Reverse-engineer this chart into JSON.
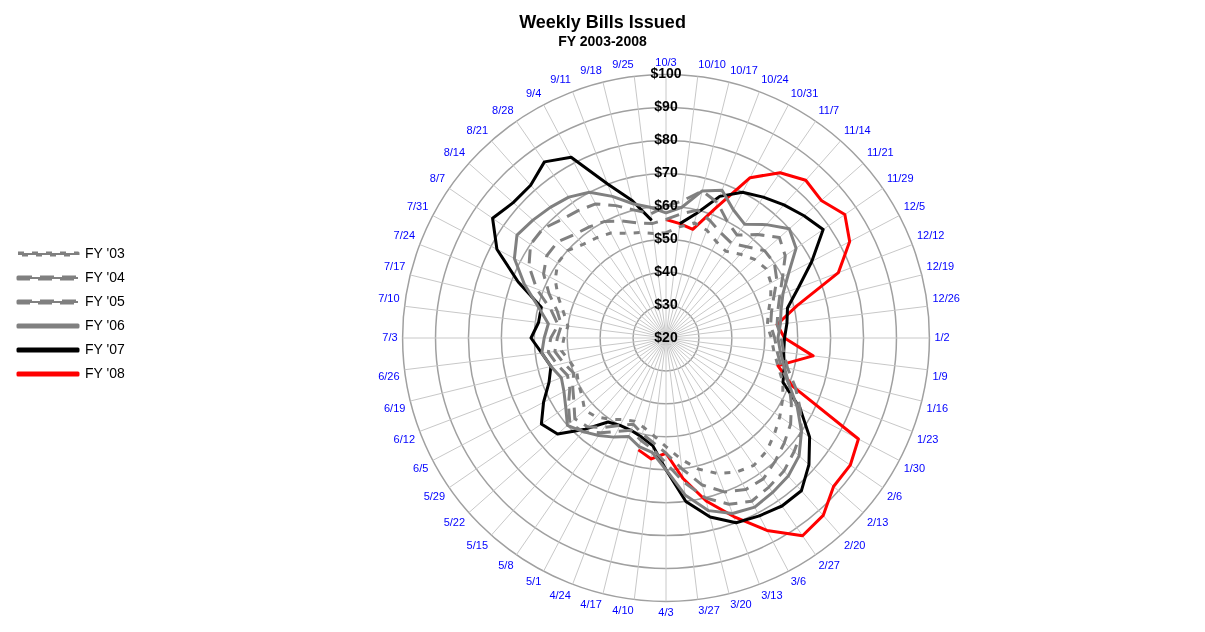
{
  "chart_data": {
    "type": "radar",
    "title": "Weekly Bills Issued",
    "subtitle": "FY 2003-2008",
    "categories": [
      "10/3",
      "10/10",
      "10/17",
      "10/24",
      "10/31",
      "11/7",
      "11/14",
      "11/21",
      "11/29",
      "12/5",
      "12/12",
      "12/19",
      "12/26",
      "1/2",
      "1/9",
      "1/16",
      "1/23",
      "1/30",
      "2/6",
      "2/13",
      "2/20",
      "2/27",
      "3/6",
      "3/13",
      "3/20",
      "3/27",
      "4/3",
      "4/10",
      "4/17",
      "4/24",
      "5/1",
      "5/8",
      "5/15",
      "5/22",
      "5/29",
      "6/5",
      "6/12",
      "6/19",
      "6/26",
      "7/3",
      "7/10",
      "7/17",
      "7/24",
      "7/31",
      "8/7",
      "8/14",
      "8/21",
      "8/28",
      "9/4",
      "9/11",
      "9/18",
      "9/25"
    ],
    "ylim": [
      20,
      100
    ],
    "yticks": [
      {
        "value": 20,
        "label": "$20"
      },
      {
        "value": 30,
        "label": "$30"
      },
      {
        "value": 40,
        "label": "$40"
      },
      {
        "value": 50,
        "label": "$50"
      },
      {
        "value": 60,
        "label": "$60"
      },
      {
        "value": 70,
        "label": "$70"
      },
      {
        "value": 80,
        "label": "$80"
      },
      {
        "value": 90,
        "label": "$90"
      },
      {
        "value": 100,
        "label": "$100"
      }
    ],
    "grid": true,
    "legend": "left",
    "marker": "none",
    "series": [
      {
        "name": "FY '03",
        "color": "#808080",
        "line_style": "dotted",
        "values": [
          52,
          54,
          56,
          55,
          53,
          52,
          54,
          56,
          57,
          56,
          54,
          52,
          51,
          52,
          53,
          55,
          58,
          60,
          62,
          64,
          66,
          67,
          66,
          64,
          61,
          57,
          53,
          50,
          48,
          47,
          48,
          50,
          52,
          53,
          51,
          50,
          49,
          50,
          52,
          51,
          50,
          52,
          55,
          58,
          60,
          60,
          58,
          57,
          56,
          54,
          53,
          52
        ]
      },
      {
        "name": "FY '04",
        "color": "#808080",
        "line_style": "dashed",
        "values": [
          56,
          58,
          60,
          58,
          56,
          55,
          57,
          60,
          60,
          58,
          55,
          53,
          52,
          53,
          54,
          56,
          60,
          63,
          66,
          68,
          70,
          72,
          72,
          70,
          66,
          60,
          55,
          52,
          50,
          48,
          50,
          53,
          56,
          57,
          54,
          52,
          50,
          52,
          54,
          53,
          52,
          54,
          58,
          62,
          64,
          64,
          62,
          61,
          60,
          58,
          56,
          55
        ]
      },
      {
        "name": "FY '05",
        "color": "#808080",
        "line_style": "dashed",
        "values": [
          60,
          62,
          66,
          64,
          60,
          58,
          62,
          66,
          64,
          60,
          57,
          55,
          54,
          55,
          56,
          58,
          62,
          66,
          70,
          72,
          74,
          75,
          76,
          74,
          70,
          64,
          58,
          54,
          52,
          50,
          52,
          55,
          58,
          59,
          56,
          53,
          52,
          54,
          56,
          55,
          53,
          56,
          62,
          67,
          70,
          70,
          68,
          67,
          66,
          63,
          60,
          58
        ]
      },
      {
        "name": "FY '06",
        "color": "#808080",
        "line_style": "solid",
        "values": [
          58,
          60,
          66,
          68,
          64,
          62,
          66,
          70,
          68,
          62,
          58,
          56,
          55,
          54,
          55,
          57,
          60,
          65,
          70,
          74,
          76,
          77,
          78,
          77,
          74,
          68,
          60,
          55,
          54,
          52,
          54,
          56,
          58,
          60,
          57,
          55,
          54,
          56,
          58,
          57,
          56,
          60,
          66,
          72,
          75,
          74,
          73,
          72,
          70,
          66,
          62,
          60
        ]
      },
      {
        "name": "FY '07",
        "color": "#000000",
        "line_style": "solid",
        "values": [
          null,
          55,
          59,
          66,
          70,
          72,
          74,
          76,
          78,
          70,
          63,
          58,
          57,
          56,
          56,
          57,
          58,
          66,
          73,
          78,
          82,
          82,
          81,
          80,
          76,
          70,
          60,
          53,
          51,
          50,
          50,
          51,
          57,
          64,
          66,
          62,
          58,
          56,
          58,
          61,
          59,
          59,
          68,
          78,
          84,
          82,
          82,
          85,
          82,
          70,
          63,
          56
        ]
      },
      {
        "name": "FY '08",
        "color": "#ff0000",
        "line_style": "solid",
        "values": [
          56,
          55,
          54,
          62,
          75,
          81,
          84,
          83,
          86,
          83,
          76,
          61,
          54,
          56,
          65,
          55,
          61,
          86,
          88,
          88,
          92,
          93,
          86,
          78,
          71,
          63,
          55,
          57,
          55,
          null,
          null,
          null,
          null,
          null,
          null,
          null,
          null,
          null,
          null,
          null,
          null,
          null,
          null,
          null,
          null,
          null,
          null,
          null,
          null,
          null,
          null,
          null
        ]
      }
    ]
  }
}
